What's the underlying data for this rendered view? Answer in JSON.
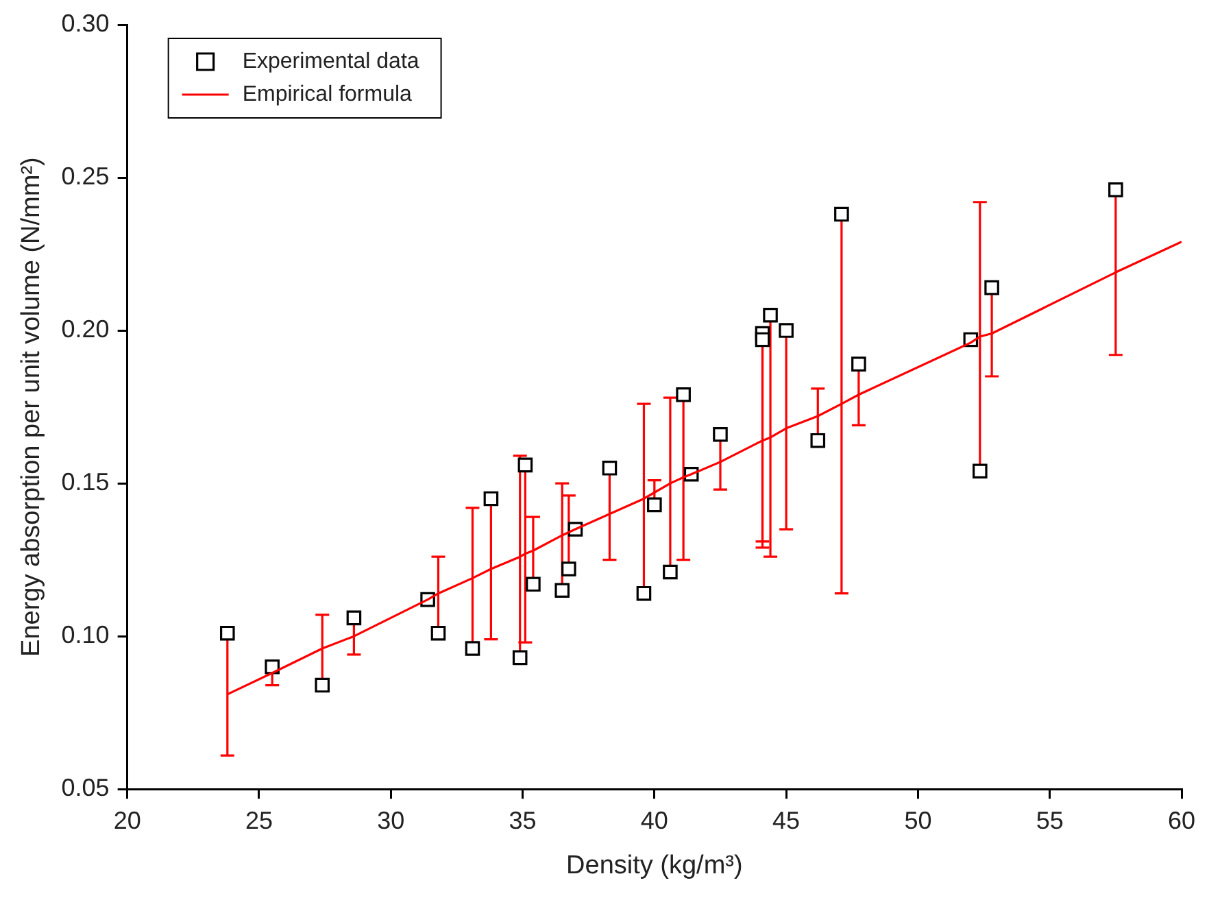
{
  "chart_data": {
    "type": "scatter",
    "xlabel": "Density (kg/m³)",
    "ylabel": "Energy absorption per unit volume (N/mm²)",
    "xlim": [
      20,
      60
    ],
    "xticks": [
      20,
      25,
      30,
      35,
      40,
      45,
      50,
      55,
      60
    ],
    "ylim": [
      0.05,
      0.3
    ],
    "yticks": [
      0.05,
      {
        "value": 0.1,
        "label": "0.10"
      },
      0.15,
      {
        "value": 0.2,
        "label": "0.20"
      },
      0.25,
      {
        "value": 0.3,
        "label": "0.30"
      }
    ],
    "legend": "top left",
    "series": [
      {
        "name": "Experimental data",
        "marker": "square",
        "color": "#000000",
        "x": [
          23.8,
          25.5,
          27.4,
          28.6,
          31.4,
          31.8,
          33.1,
          33.8,
          34.9,
          35.1,
          35.4,
          36.5,
          36.75,
          37.0,
          38.3,
          39.6,
          40.0,
          40.6,
          41.1,
          41.4,
          42.5,
          44.1,
          44.1,
          44.4,
          45.0,
          46.2,
          47.1,
          47.75,
          52.0,
          52.35,
          52.8,
          57.5
        ],
        "values": [
          0.101,
          0.09,
          0.084,
          0.106,
          0.112,
          0.101,
          0.096,
          0.145,
          0.093,
          0.156,
          0.117,
          0.115,
          0.122,
          0.135,
          0.155,
          0.114,
          0.143,
          0.121,
          0.179,
          0.153,
          0.166,
          0.199,
          0.197,
          0.205,
          0.2,
          0.164,
          0.238,
          0.189,
          0.197,
          0.154,
          0.214,
          0.246
        ]
      },
      {
        "name": "Empirical formula",
        "type": "line",
        "marker": "none",
        "color": "#ff0000",
        "x": [
          23.8,
          25.5,
          27.4,
          28.6,
          31.4,
          31.8,
          33.1,
          33.8,
          34.9,
          35.1,
          35.4,
          36.5,
          36.75,
          37.0,
          38.3,
          39.6,
          40.0,
          40.6,
          41.1,
          41.4,
          42.5,
          44.1,
          44.1,
          44.4,
          45.0,
          46.2,
          47.1,
          47.75,
          52.0,
          52.35,
          52.8,
          57.5,
          60.0
        ],
        "values": [
          0.081,
          0.088,
          0.096,
          0.1,
          0.112,
          0.114,
          0.119,
          0.122,
          0.126,
          0.127,
          0.128,
          0.133,
          0.134,
          0.135,
          0.14,
          0.145,
          0.147,
          0.15,
          0.152,
          0.153,
          0.157,
          0.164,
          0.164,
          0.165,
          0.168,
          0.172,
          0.176,
          0.179,
          0.196,
          0.198,
          0.199,
          0.219,
          0.229
        ],
        "errors": [
          0.02,
          0.004,
          0.011,
          0.006,
          null,
          0.012,
          0.023,
          0.023,
          0.033,
          0.029,
          0.011,
          0.017,
          0.012,
          null,
          0.015,
          0.031,
          0.004,
          0.028,
          0.027,
          null,
          0.009,
          0.035,
          0.033,
          0.039,
          0.033,
          0.009,
          0.062,
          0.01,
          null,
          0.044,
          0.014,
          0.027,
          null
        ]
      }
    ]
  }
}
